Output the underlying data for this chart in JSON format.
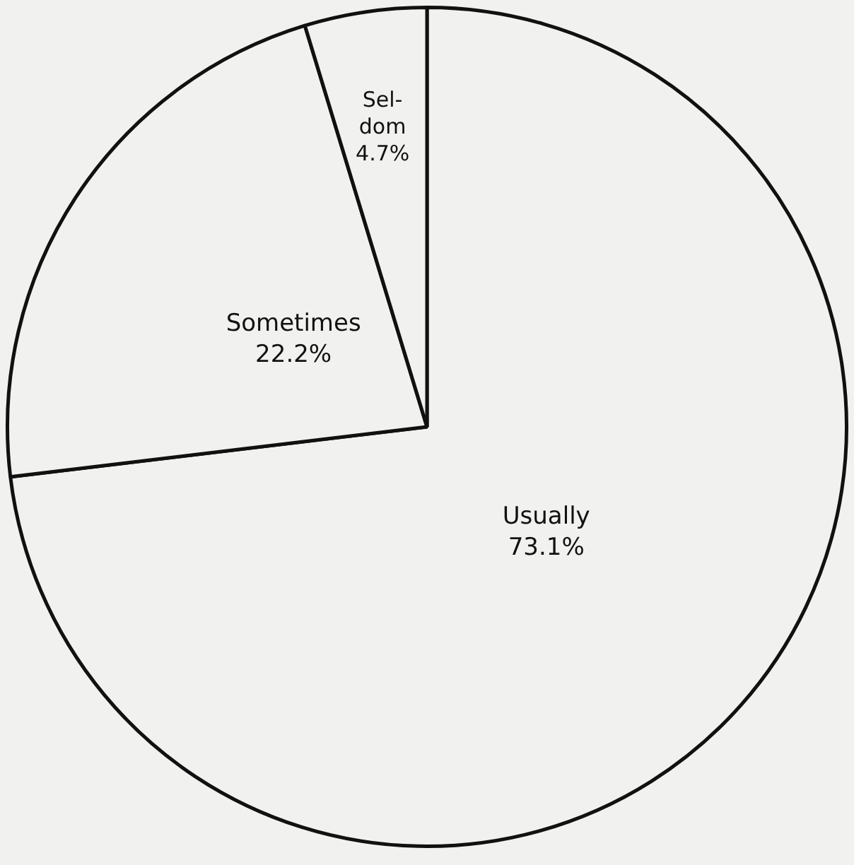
{
  "chart_data": {
    "type": "pie",
    "categories": [
      "Usually",
      "Sometimes",
      "Sel-\ndom"
    ],
    "values": [
      73.1,
      22.2,
      4.7
    ],
    "value_labels": [
      "73.1%",
      "22.2%",
      "4.7%"
    ],
    "colors": [
      "#f1f1ef",
      "#f1f1ef",
      "#f1f1ef"
    ],
    "legend": false
  }
}
